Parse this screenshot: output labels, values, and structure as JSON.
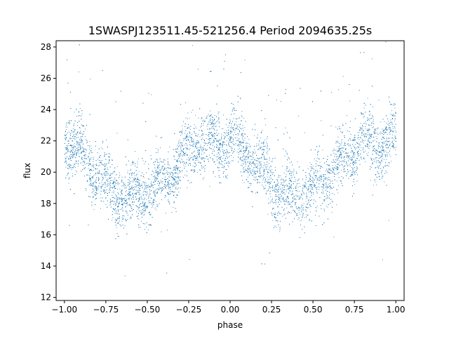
{
  "chart_data": {
    "type": "scatter",
    "title": "1SWASPJ123511.45-521256.4 Period 2094635.25s",
    "xlabel": "phase",
    "ylabel": "flux",
    "xlim": [
      -1.05,
      1.05
    ],
    "ylim": [
      11.8,
      28.4
    ],
    "xticks": [
      -1.0,
      -0.75,
      -0.5,
      -0.25,
      0.0,
      0.25,
      0.5,
      0.75,
      1.0
    ],
    "xtick_labels": [
      "−1.00",
      "−0.75",
      "−0.50",
      "−0.25",
      "0.00",
      "0.25",
      "0.50",
      "0.75",
      "1.00"
    ],
    "yticks": [
      12,
      14,
      16,
      18,
      20,
      22,
      24,
      26,
      28
    ],
    "ytick_labels": [
      "12",
      "14",
      "16",
      "18",
      "20",
      "22",
      "24",
      "26",
      "28"
    ],
    "grid": false,
    "color": "#1f77b4",
    "point_count_estimate": 20000,
    "trend": {
      "x": [
        -1.0,
        -0.9,
        -0.8,
        -0.7,
        -0.6,
        -0.5,
        -0.4,
        -0.3,
        -0.2,
        -0.1,
        0.0,
        0.1,
        0.2,
        0.3,
        0.4,
        0.5,
        0.6,
        0.7,
        0.8,
        0.9,
        1.0
      ],
      "y": [
        22.0,
        21.3,
        20.0,
        18.6,
        18.6,
        18.8,
        19.5,
        20.8,
        22.0,
        21.8,
        22.0,
        21.2,
        20.0,
        18.8,
        18.6,
        18.8,
        19.7,
        21.0,
        22.0,
        21.8,
        22.0
      ],
      "spread": 1.3
    }
  }
}
